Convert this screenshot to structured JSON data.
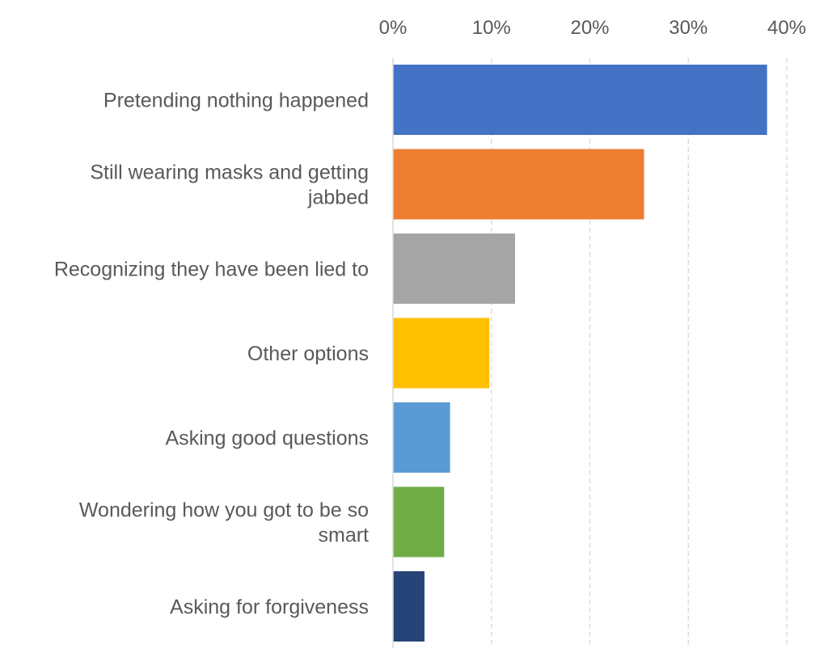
{
  "chart_data": {
    "type": "bar",
    "orientation": "horizontal",
    "title": "",
    "xlabel": "",
    "ylabel": "",
    "xlim": [
      0,
      0.4
    ],
    "x_ticks": [
      0,
      0.1,
      0.2,
      0.3,
      0.4
    ],
    "x_tick_labels": [
      "0%",
      "10%",
      "20%",
      "30%",
      "40%"
    ],
    "x_axis_position": "top",
    "grid": "vertical dashed",
    "legend": "none",
    "categories": [
      [
        "Pretending nothing happened"
      ],
      [
        "Still wearing masks and getting",
        "jabbed"
      ],
      [
        "Recognizing they have been lied to"
      ],
      [
        "Other options"
      ],
      [
        "Asking good questions"
      ],
      [
        "Wondering how you got to be so",
        "smart"
      ],
      [
        "Asking for forgiveness"
      ]
    ],
    "values": [
      0.38,
      0.255,
      0.124,
      0.098,
      0.058,
      0.052,
      0.032
    ],
    "colors": [
      "#4472C4",
      "#ED7D31",
      "#A5A5A5",
      "#FFC000",
      "#5B9BD5",
      "#70AD47",
      "#264478"
    ]
  }
}
